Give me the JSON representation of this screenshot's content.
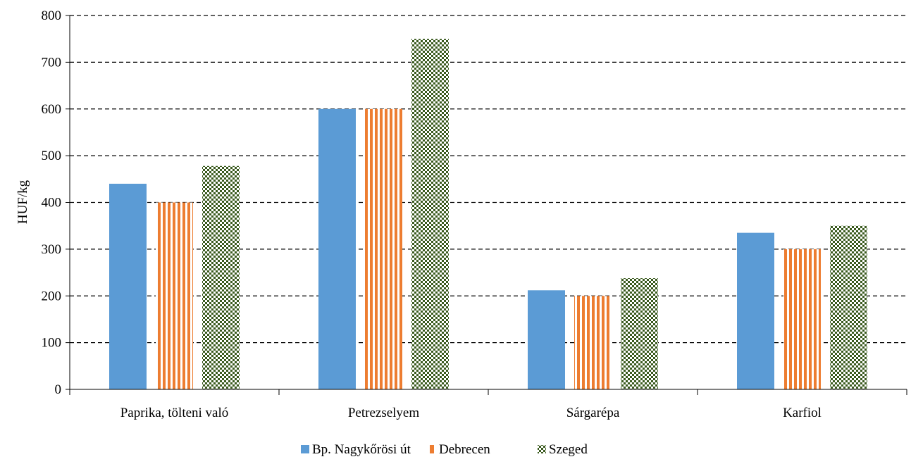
{
  "chart_data": {
    "type": "bar",
    "title": "",
    "xlabel": "",
    "ylabel": "HUF/kg",
    "ylim": [
      0,
      800
    ],
    "yticks": [
      0,
      100,
      200,
      300,
      400,
      500,
      600,
      700,
      800
    ],
    "grid": "horizontal dashed",
    "legend_position": "bottom",
    "categories": [
      "Paprika, tölteni való",
      "Petrezselyem",
      "Sárgarépa",
      "Karfiol"
    ],
    "series": [
      {
        "name": "Bp. Nagykőrösi út",
        "values": [
          440,
          600,
          212,
          335
        ],
        "color": "#5b9bd5",
        "pattern": "solid"
      },
      {
        "name": "Debrecen",
        "values": [
          400,
          600,
          200,
          300
        ],
        "color": "#ed7d31",
        "pattern": "vertical-stripes"
      },
      {
        "name": "Szeged",
        "values": [
          478,
          750,
          238,
          350
        ],
        "color": "#3a5a1e",
        "pattern": "checkerboard"
      }
    ]
  }
}
